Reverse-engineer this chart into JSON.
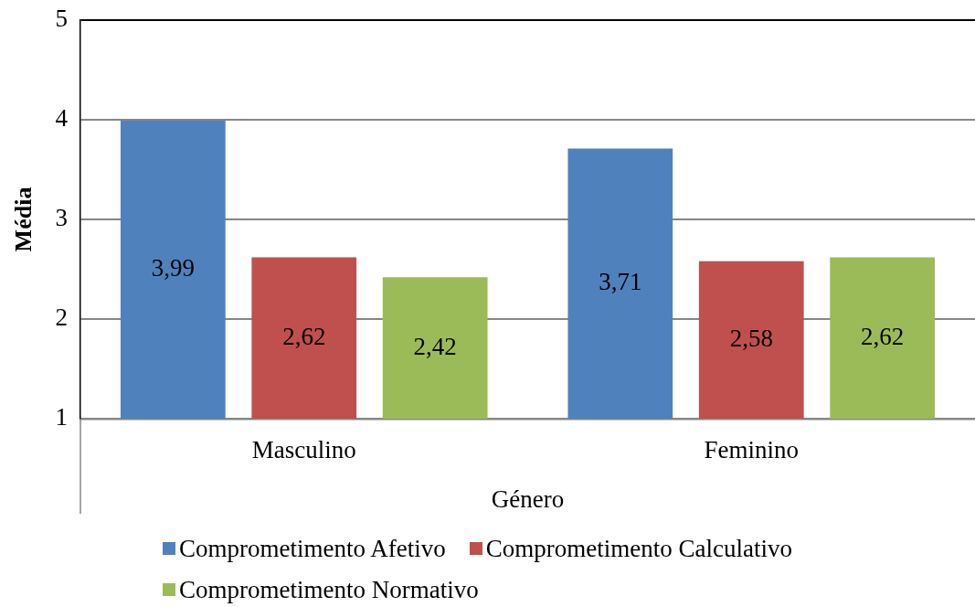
{
  "chart_data": {
    "type": "bar",
    "xlabel": "Género",
    "ylabel": "Média",
    "categories": [
      "Masculino",
      "Feminino"
    ],
    "series": [
      {
        "name": "Comprometimento Afetivo",
        "color": "#4f81bd",
        "values": [
          3.99,
          3.71
        ],
        "value_labels": [
          "3,99",
          "3,71"
        ]
      },
      {
        "name": "Comprometimento Calculativo",
        "color": "#c0504d",
        "values": [
          2.62,
          2.58
        ],
        "value_labels": [
          "2,62",
          "2,58"
        ]
      },
      {
        "name": "Comprometimento Normativo",
        "color": "#9bbb59",
        "values": [
          2.42,
          2.62
        ],
        "value_labels": [
          "2,42",
          "2,62"
        ]
      }
    ],
    "ylim": [
      1,
      5
    ],
    "yticks": [
      1,
      2,
      3,
      4,
      5
    ],
    "grid": "y",
    "legend": "bottom"
  }
}
